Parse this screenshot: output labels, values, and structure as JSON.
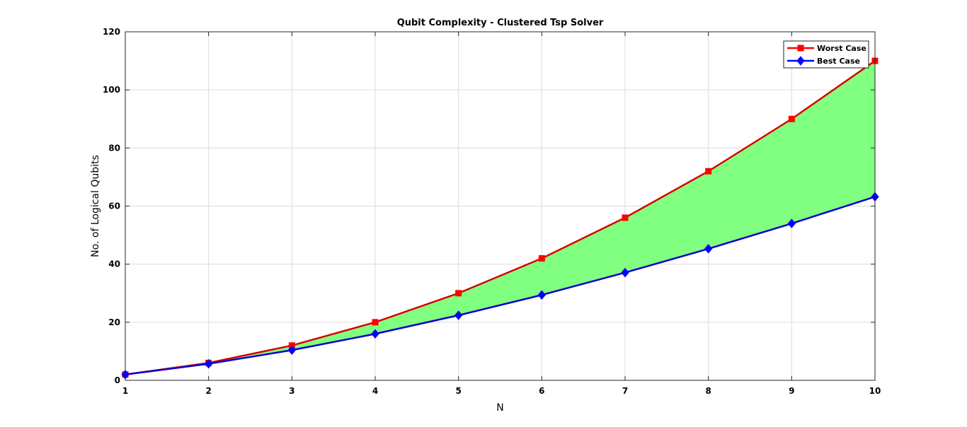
{
  "chart_data": {
    "type": "line",
    "title": "Qubit Complexity - Clustered Tsp Solver",
    "xlabel": "N",
    "ylabel": "No. of Logical Qubits",
    "x": [
      1,
      2,
      3,
      4,
      5,
      6,
      7,
      8,
      9,
      10
    ],
    "xlim": [
      1,
      10
    ],
    "ylim": [
      0,
      120
    ],
    "xticks": [
      1,
      2,
      3,
      4,
      5,
      6,
      7,
      8,
      9,
      10
    ],
    "yticks": [
      0,
      20,
      40,
      60,
      80,
      100,
      120
    ],
    "grid": true,
    "legend_position": "top-right",
    "fill_between": {
      "color": "#80ff80",
      "series": [
        "Worst Case",
        "Best Case"
      ]
    },
    "series": [
      {
        "name": "Worst Case",
        "color": "#ff0000",
        "marker": "square",
        "values": [
          2,
          6,
          12,
          20,
          30,
          42,
          56,
          72,
          90,
          110
        ]
      },
      {
        "name": "Best Case",
        "color": "#0000ff",
        "marker": "diamond",
        "values": [
          2,
          5.7,
          10.4,
          16,
          22.4,
          29.4,
          37.1,
          45.3,
          54,
          63.2
        ]
      }
    ]
  }
}
